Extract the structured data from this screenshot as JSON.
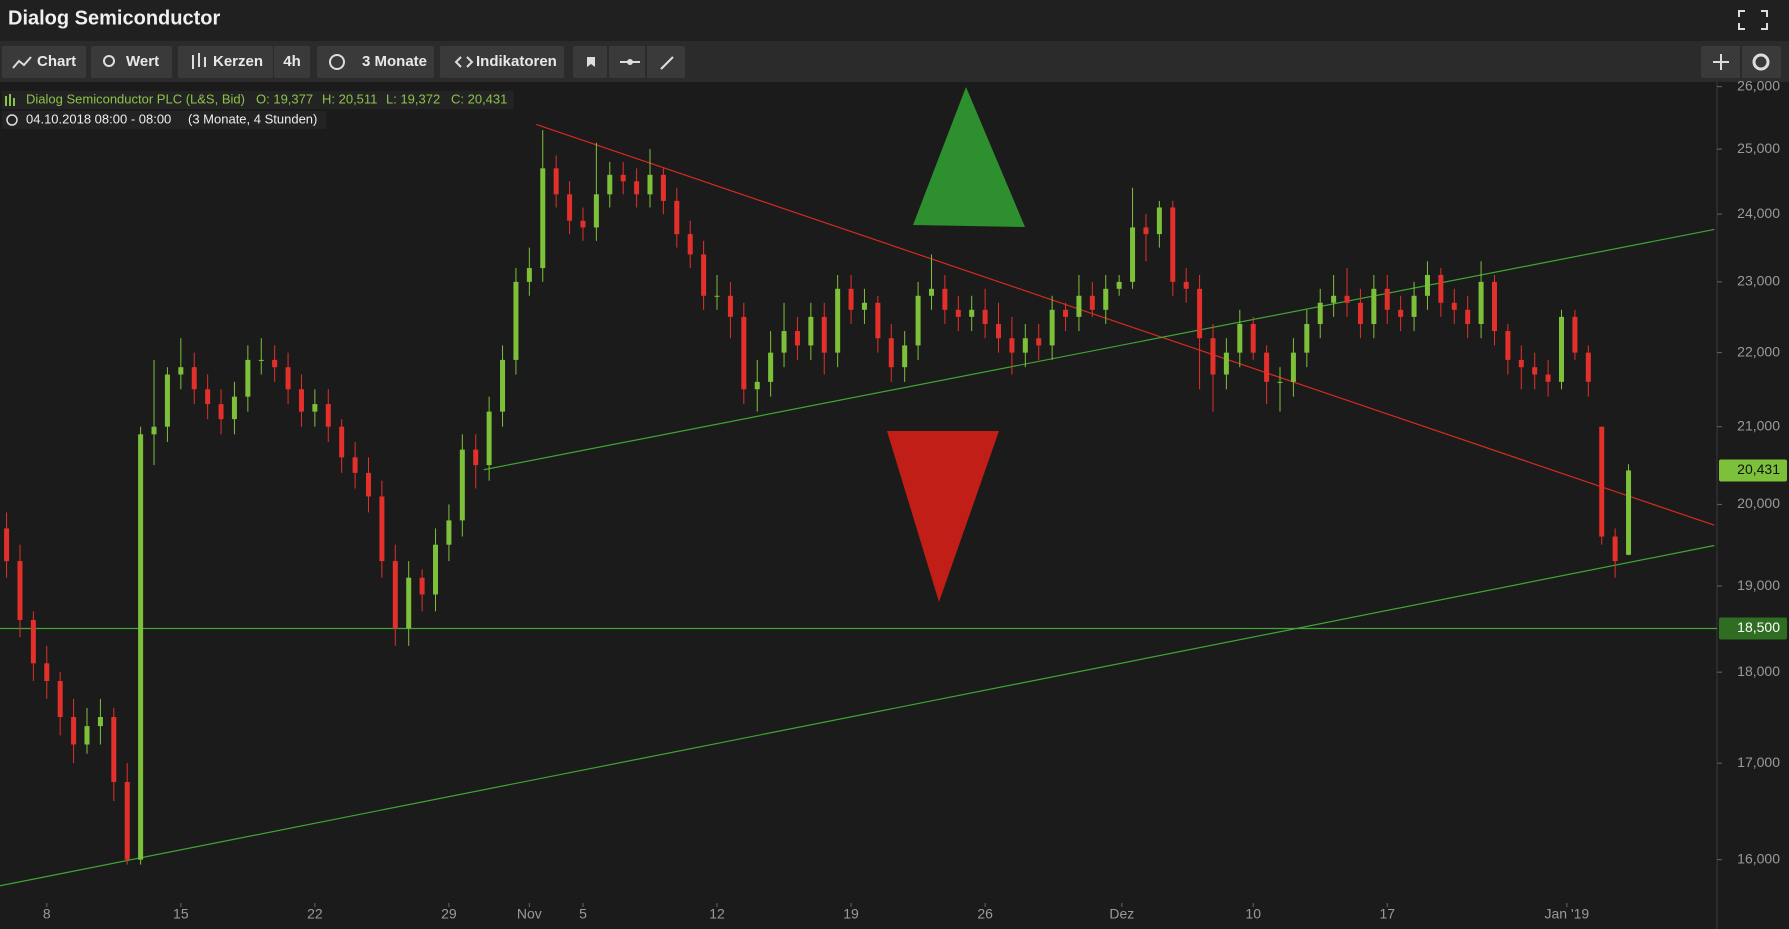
{
  "header": {
    "title": "Dialog Semiconductor"
  },
  "toolbar": {
    "chart": "Chart",
    "wert": "Wert",
    "kerzen": "Kerzen",
    "interval": "4h",
    "range": "3 Monate",
    "indikatoren": "Indikatoren"
  },
  "legend": {
    "instrument": "Dialog Semiconductor PLC (L&S, Bid)",
    "open": "O: 19,377",
    "high": "H: 20,511",
    "low": "L: 19,372",
    "close": "C: 20,431",
    "period": "04.10.2018 08:00 - 08:00",
    "span": "(3 Monate, 4 Stunden)"
  },
  "chart_data": {
    "type": "candlestick",
    "up_color": "#7dc13a",
    "down_color": "#e3302b",
    "log_scale": true,
    "grid": false,
    "xlim": [
      -1.745,
      62.3
    ],
    "ylim": [
      15590,
      26060
    ],
    "xticks": [
      {
        "value": 0,
        "label": "8"
      },
      {
        "value": 5,
        "label": "15"
      },
      {
        "value": 10,
        "label": "22"
      },
      {
        "value": 15,
        "label": "29"
      },
      {
        "value": 18,
        "label": "Nov"
      },
      {
        "value": 20,
        "label": "5"
      },
      {
        "value": 25,
        "label": "12"
      },
      {
        "value": 30,
        "label": "19"
      },
      {
        "value": 35,
        "label": "26"
      },
      {
        "value": 40.1,
        "label": "Dez"
      },
      {
        "value": 45,
        "label": "10"
      },
      {
        "value": 50,
        "label": "17"
      },
      {
        "value": 56.7,
        "label": "Jan '19"
      }
    ],
    "yticks": [
      {
        "value": 16000,
        "label": "16,000"
      },
      {
        "value": 17000,
        "label": "17,000"
      },
      {
        "value": 18000,
        "label": "18,000"
      },
      {
        "value": 19000,
        "label": "19,000"
      },
      {
        "value": 20000,
        "label": "20,000"
      },
      {
        "value": 21000,
        "label": "21,000"
      },
      {
        "value": 22000,
        "label": "22,000"
      },
      {
        "value": 23000,
        "label": "23,000"
      },
      {
        "value": 24000,
        "label": "24,000"
      },
      {
        "value": 25000,
        "label": "25,000"
      },
      {
        "value": 26000,
        "label": "26,000"
      }
    ],
    "x": [
      -1.5,
      -1,
      -0.5,
      0,
      0.5,
      1,
      1.5,
      2,
      2.5,
      3,
      3.5,
      4,
      4.5,
      5,
      5.5,
      6,
      6.5,
      7,
      7.5,
      8,
      8.5,
      9,
      9.5,
      10,
      10.5,
      11,
      11.5,
      12,
      12.5,
      13,
      13.5,
      14,
      14.5,
      15,
      15.5,
      16,
      16.5,
      17,
      17.5,
      18,
      18.5,
      19,
      19.5,
      20,
      20.5,
      21,
      21.5,
      22,
      22.5,
      23,
      23.5,
      24,
      24.5,
      25,
      25.5,
      26,
      26.5,
      27,
      27.5,
      28,
      28.5,
      29,
      29.5,
      30,
      30.5,
      31,
      31.5,
      32,
      32.5,
      33,
      33.5,
      34,
      34.5,
      35,
      35.5,
      36,
      36.5,
      37,
      37.5,
      38,
      38.5,
      39,
      39.5,
      40,
      40.5,
      41,
      41.5,
      42,
      42.5,
      43,
      43.5,
      44,
      44.5,
      45,
      45.5,
      46,
      46.5,
      47,
      47.5,
      48,
      48.5,
      49,
      49.5,
      50,
      50.5,
      51,
      51.5,
      52,
      52.5,
      53,
      53.5,
      54,
      54.5,
      55,
      55.5,
      56,
      56.5,
      57,
      57.5,
      58,
      58.5,
      59
    ],
    "open": [
      19700,
      19300,
      18600,
      18100,
      17900,
      17500,
      17200,
      17400,
      17500,
      16800,
      16000,
      20900,
      21000,
      21700,
      21800,
      21500,
      21300,
      21100,
      21400,
      21900,
      21900,
      21800,
      21500,
      21200,
      21300,
      21000,
      20600,
      20400,
      20100,
      19300,
      18500,
      19100,
      18900,
      19500,
      19800,
      20700,
      20500,
      21200,
      21900,
      23000,
      23200,
      24700,
      24300,
      23900,
      23800,
      24300,
      24600,
      24500,
      24300,
      24600,
      24200,
      23700,
      23400,
      22800,
      22800,
      22500,
      21500,
      21600,
      22000,
      22300,
      22100,
      22500,
      22000,
      22900,
      22600,
      22700,
      22200,
      21800,
      22100,
      22800,
      22900,
      22600,
      22500,
      22600,
      22400,
      22200,
      22000,
      22200,
      22100,
      22600,
      22500,
      22800,
      22600,
      22900,
      23000,
      23800,
      23700,
      24100,
      23000,
      22900,
      22200,
      21700,
      22000,
      22400,
      22000,
      21600,
      21600,
      22000,
      22400,
      22700,
      22800,
      22700,
      22400,
      22900,
      22600,
      22500,
      22800,
      23100,
      22700,
      22600,
      22400,
      23000,
      22300,
      21900,
      21800,
      21700,
      21600,
      22500,
      22000,
      21000,
      19600,
      19377
    ],
    "high": [
      19900,
      19500,
      18700,
      18300,
      18000,
      17700,
      17600,
      17700,
      17600,
      17000,
      21000,
      21900,
      21800,
      22200,
      22000,
      21700,
      21500,
      21600,
      22100,
      22200,
      22100,
      22000,
      21700,
      21500,
      21500,
      21100,
      20800,
      20600,
      20300,
      19500,
      19300,
      19200,
      19700,
      20000,
      20900,
      20900,
      21400,
      22100,
      23200,
      23500,
      25300,
      24900,
      24500,
      24100,
      25100,
      24800,
      24800,
      24700,
      25000,
      24700,
      24400,
      23900,
      23600,
      23100,
      23000,
      22700,
      21900,
      22300,
      22700,
      22500,
      22700,
      22700,
      23100,
      23100,
      22900,
      22800,
      22400,
      22300,
      23000,
      23400,
      23100,
      22800,
      22800,
      22900,
      22700,
      22500,
      22400,
      22400,
      22800,
      22700,
      23100,
      23000,
      23100,
      23100,
      24400,
      24000,
      24200,
      24200,
      23200,
      23100,
      22400,
      22200,
      22600,
      22500,
      22100,
      21800,
      22200,
      22600,
      22900,
      23100,
      23200,
      22900,
      23100,
      23100,
      22800,
      23000,
      23300,
      23200,
      22900,
      22800,
      23300,
      23100,
      22400,
      22100,
      22000,
      21900,
      22600,
      22600,
      22100,
      21000,
      19700,
      20511
    ],
    "low": [
      19100,
      18400,
      17900,
      17700,
      17300,
      17000,
      17100,
      17200,
      16600,
      15950,
      15950,
      20500,
      20800,
      21500,
      21300,
      21100,
      20900,
      20900,
      21200,
      21700,
      21600,
      21300,
      21000,
      21000,
      20800,
      20400,
      20200,
      19900,
      19100,
      18300,
      18300,
      18700,
      18700,
      19300,
      19600,
      20200,
      20300,
      21000,
      21700,
      22800,
      23000,
      24100,
      23700,
      23600,
      23600,
      24100,
      24300,
      24100,
      24100,
      24000,
      23500,
      23200,
      22600,
      22600,
      22200,
      21300,
      21200,
      21400,
      21800,
      21900,
      21900,
      21700,
      21800,
      22400,
      22400,
      22000,
      21600,
      21600,
      21900,
      22600,
      22400,
      22300,
      22300,
      22200,
      22000,
      21700,
      21800,
      21900,
      21900,
      22300,
      22300,
      22500,
      22400,
      22800,
      22900,
      23300,
      23500,
      22800,
      22700,
      21500,
      21200,
      21500,
      21800,
      21900,
      21300,
      21200,
      21400,
      21800,
      22200,
      22500,
      22500,
      22200,
      22200,
      22400,
      22300,
      22300,
      22600,
      22500,
      22400,
      22200,
      22200,
      22100,
      21700,
      21500,
      21500,
      21400,
      21500,
      21900,
      21400,
      19500,
      19100,
      19372
    ],
    "close": [
      19300,
      18600,
      18100,
      17900,
      17500,
      17200,
      17400,
      17500,
      16800,
      16000,
      20900,
      21000,
      21700,
      21800,
      21500,
      21300,
      21100,
      21400,
      21900,
      21900,
      21800,
      21500,
      21200,
      21300,
      21000,
      20600,
      20400,
      20100,
      19300,
      18500,
      19100,
      18900,
      19500,
      19800,
      20700,
      20500,
      21200,
      21900,
      23000,
      23200,
      24700,
      24300,
      23900,
      23800,
      24300,
      24600,
      24500,
      24300,
      24600,
      24200,
      23700,
      23400,
      22800,
      22800,
      22500,
      21500,
      21600,
      22000,
      22300,
      22100,
      22500,
      22000,
      22900,
      22600,
      22700,
      22200,
      21800,
      22100,
      22800,
      22900,
      22600,
      22500,
      22600,
      22400,
      22200,
      22000,
      22200,
      22100,
      22600,
      22500,
      22800,
      22600,
      22900,
      23000,
      23800,
      23700,
      24100,
      23000,
      22900,
      22200,
      21700,
      22000,
      22400,
      22000,
      21600,
      21600,
      22000,
      22400,
      22700,
      22800,
      22700,
      22400,
      22900,
      22600,
      22500,
      22800,
      23100,
      22700,
      22600,
      22400,
      23000,
      22300,
      21900,
      21800,
      21700,
      21600,
      22500,
      22000,
      21600,
      19600,
      19300,
      20431
    ],
    "last_label": "20,431",
    "hline": {
      "value": 18500,
      "label": "18,500",
      "color": "#3fa535"
    },
    "trendlines": [
      {
        "color": "#d52b1e",
        "x": [
          18.26,
          62.2
        ],
        "y": [
          25390,
          19740
        ]
      },
      {
        "color": "#3fa535",
        "x": [
          16.3,
          62.2
        ],
        "y": [
          20440,
          23770
        ]
      },
      {
        "color": "#3fa535",
        "x": [
          -1.745,
          62.2
        ],
        "y": [
          15740,
          19490
        ]
      }
    ]
  }
}
